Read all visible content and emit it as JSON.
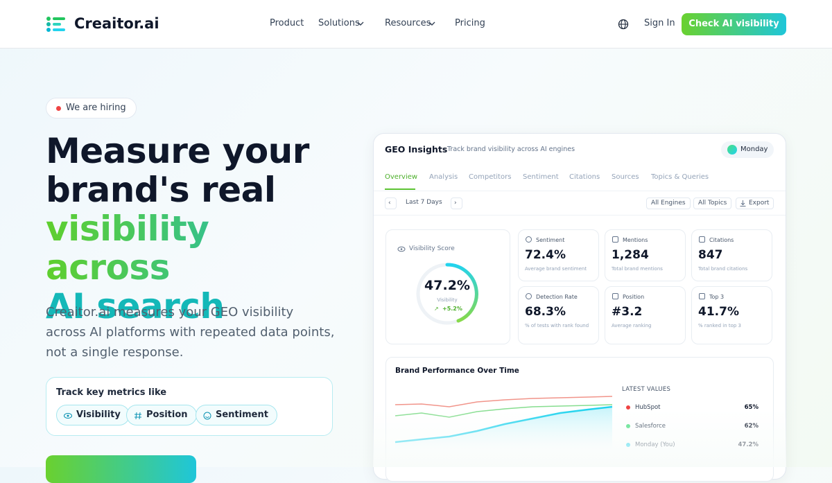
{
  "nav": {
    "brand": "Creaitor.ai",
    "links": [
      "Product",
      "Solutions",
      "Resources",
      "Pricing"
    ],
    "sign_in": "Sign In",
    "cta": "Check AI visibility"
  },
  "hero": {
    "badge": "We are hiring",
    "title_lines": [
      "Measure your",
      "brand's real"
    ],
    "title_accent_lines": [
      "visibility across",
      "AI search"
    ],
    "description": "Creaitor.ai measures your GEO visibility across AI platforms with repeated data points, not a single response.",
    "metrics_title": "Track key metrics like",
    "metrics": [
      "Visibility",
      "Position",
      "Sentiment"
    ]
  },
  "dashboard": {
    "title": "GEO Insights",
    "subtitle": "Track brand visibility across AI engines",
    "day": "Monday",
    "tabs": [
      "Overview",
      "Analysis",
      "Competitors",
      "Sentiment",
      "Citations",
      "Sources",
      "Topics & Queries"
    ],
    "range": "Last 7 Days",
    "filters": [
      "All Engines",
      "All Topics",
      "Export"
    ],
    "score": {
      "label": "Visibility Score",
      "value": "47.2%",
      "caption": "Visibility",
      "change": "+5.2%"
    },
    "cards": [
      {
        "label": "Sentiment",
        "value": "72.4%",
        "note": "Average brand sentiment"
      },
      {
        "label": "Mentions",
        "value": "1,284",
        "note": "Total brand mentions"
      },
      {
        "label": "Citations",
        "value": "847",
        "note": "Total brand citations"
      },
      {
        "label": "Detection Rate",
        "value": "68.3%",
        "note": "% of tests with rank found"
      },
      {
        "label": "Position",
        "value": "#3.2",
        "note": "Average ranking"
      },
      {
        "label": "Top 3",
        "value": "41.7%",
        "note": "% ranked in top 3"
      }
    ],
    "chart": {
      "title": "Brand Performance Over Time",
      "legend_title": "LATEST VALUES",
      "rows": [
        {
          "name": "HubSpot",
          "value": "65%"
        },
        {
          "name": "Salesforce",
          "value": "62%"
        },
        {
          "name": "Monday (You)",
          "value": "47.2%"
        }
      ]
    }
  }
}
